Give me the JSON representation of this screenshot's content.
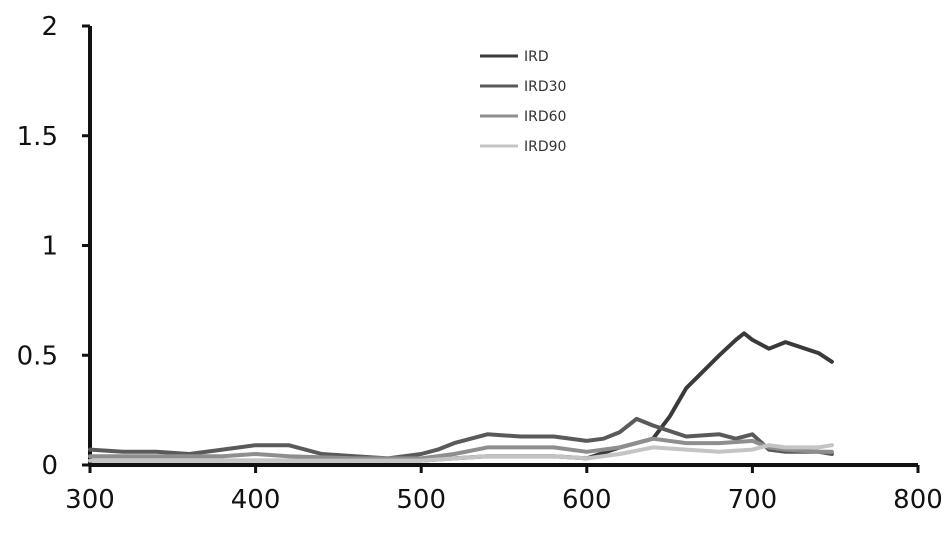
{
  "chart_data": {
    "type": "line",
    "title": "",
    "xlabel": "",
    "ylabel": "",
    "xlim": [
      300,
      800
    ],
    "ylim": [
      0,
      2
    ],
    "x_ticks": [
      "300",
      "400",
      "500",
      "600",
      "700",
      "800"
    ],
    "y_ticks": [
      "0",
      "0.5",
      "1",
      "1.5",
      "2"
    ],
    "grid": false,
    "legend_placement": "top-center",
    "series": [
      {
        "name": "IRD",
        "color": "#3a3a3a",
        "x": [
          300,
          320,
          340,
          360,
          380,
          400,
          410,
          420,
          440,
          460,
          480,
          500,
          520,
          540,
          560,
          580,
          600,
          620,
          640,
          650,
          660,
          680,
          690,
          695,
          700,
          710,
          720,
          740,
          748
        ],
        "y": [
          0.02,
          0.02,
          0.02,
          0.02,
          0.02,
          0.02,
          0.02,
          0.02,
          0.02,
          0.02,
          0.02,
          0.02,
          0.03,
          0.04,
          0.04,
          0.04,
          0.03,
          0.08,
          0.12,
          0.22,
          0.35,
          0.5,
          0.57,
          0.6,
          0.57,
          0.53,
          0.56,
          0.51,
          0.47
        ]
      },
      {
        "name": "IRD30",
        "color": "#5a5a5a",
        "x": [
          300,
          320,
          340,
          360,
          380,
          400,
          420,
          440,
          460,
          480,
          500,
          510,
          520,
          540,
          560,
          580,
          600,
          610,
          620,
          630,
          640,
          660,
          680,
          690,
          700,
          710,
          720,
          740,
          748
        ],
        "y": [
          0.07,
          0.06,
          0.06,
          0.05,
          0.07,
          0.09,
          0.09,
          0.05,
          0.04,
          0.03,
          0.05,
          0.07,
          0.1,
          0.14,
          0.13,
          0.13,
          0.11,
          0.12,
          0.15,
          0.21,
          0.18,
          0.13,
          0.14,
          0.12,
          0.14,
          0.07,
          0.06,
          0.06,
          0.05
        ]
      },
      {
        "name": "IRD60",
        "color": "#8e8e8e",
        "x": [
          300,
          340,
          380,
          400,
          420,
          460,
          500,
          520,
          540,
          560,
          580,
          600,
          620,
          640,
          660,
          680,
          700,
          710,
          720,
          740,
          748
        ],
        "y": [
          0.04,
          0.04,
          0.04,
          0.05,
          0.04,
          0.03,
          0.03,
          0.05,
          0.08,
          0.08,
          0.08,
          0.06,
          0.08,
          0.12,
          0.1,
          0.1,
          0.11,
          0.08,
          0.07,
          0.06,
          0.06
        ]
      },
      {
        "name": "IRD90",
        "color": "#c4c4c4",
        "x": [
          300,
          340,
          380,
          420,
          460,
          500,
          540,
          580,
          600,
          620,
          640,
          660,
          680,
          700,
          710,
          720,
          740,
          748
        ],
        "y": [
          0.02,
          0.02,
          0.02,
          0.02,
          0.02,
          0.02,
          0.04,
          0.04,
          0.03,
          0.05,
          0.08,
          0.07,
          0.06,
          0.07,
          0.09,
          0.08,
          0.08,
          0.09
        ]
      }
    ]
  }
}
